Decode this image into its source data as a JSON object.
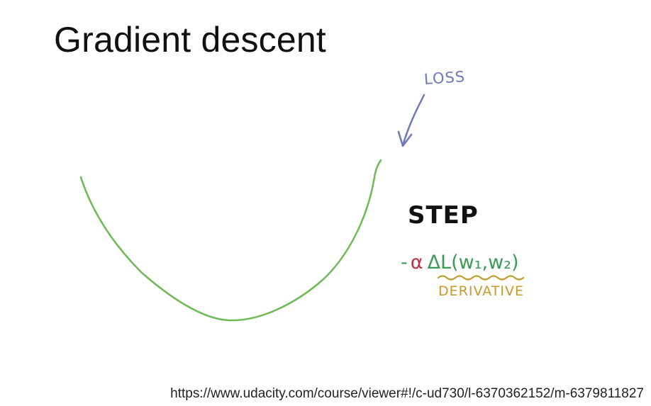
{
  "slide": {
    "title": "Gradient descent",
    "labels": {
      "loss": "LOSS",
      "step": "STEP",
      "formula_minus": "-",
      "formula_alpha": "α",
      "formula_grad": "ΔL(w₁,w₂)",
      "derivative": "DERIVATIVE"
    },
    "url": "https://www.udacity.com/course/viewer#!/c-ud730/l-6370362152/m-6379811827"
  },
  "colors": {
    "curve": "#6dbb55",
    "loss_arrow": "#6f78b8",
    "derivative": "#c89a2a",
    "alpha": "#c0304a",
    "formula_green": "#3b9a55"
  }
}
